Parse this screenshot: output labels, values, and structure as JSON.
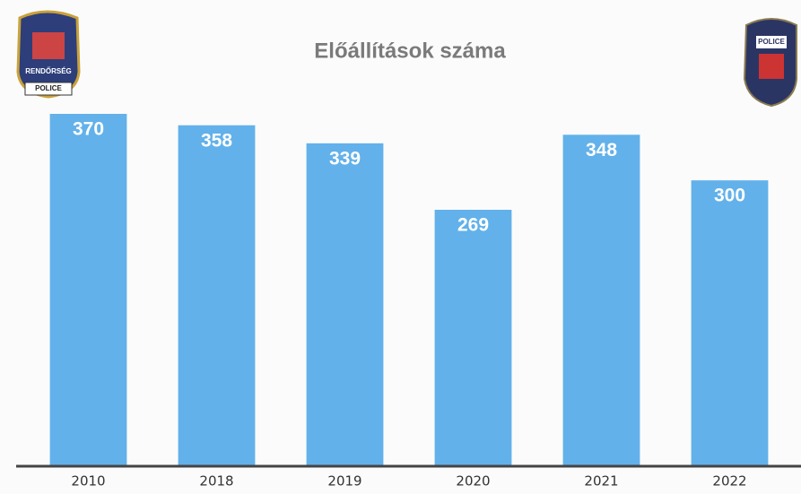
{
  "chart_data": {
    "type": "bar",
    "title": "Előállítások száma",
    "categories": [
      "2010",
      "2018",
      "2019",
      "2020",
      "2021",
      "2022"
    ],
    "values": [
      370,
      358,
      339,
      269,
      348,
      300
    ],
    "color": "#62b1ea"
  },
  "logos": {
    "left": [
      "RENDŐRSÉG",
      "POLICE"
    ],
    "right": [
      "POLICE"
    ]
  }
}
